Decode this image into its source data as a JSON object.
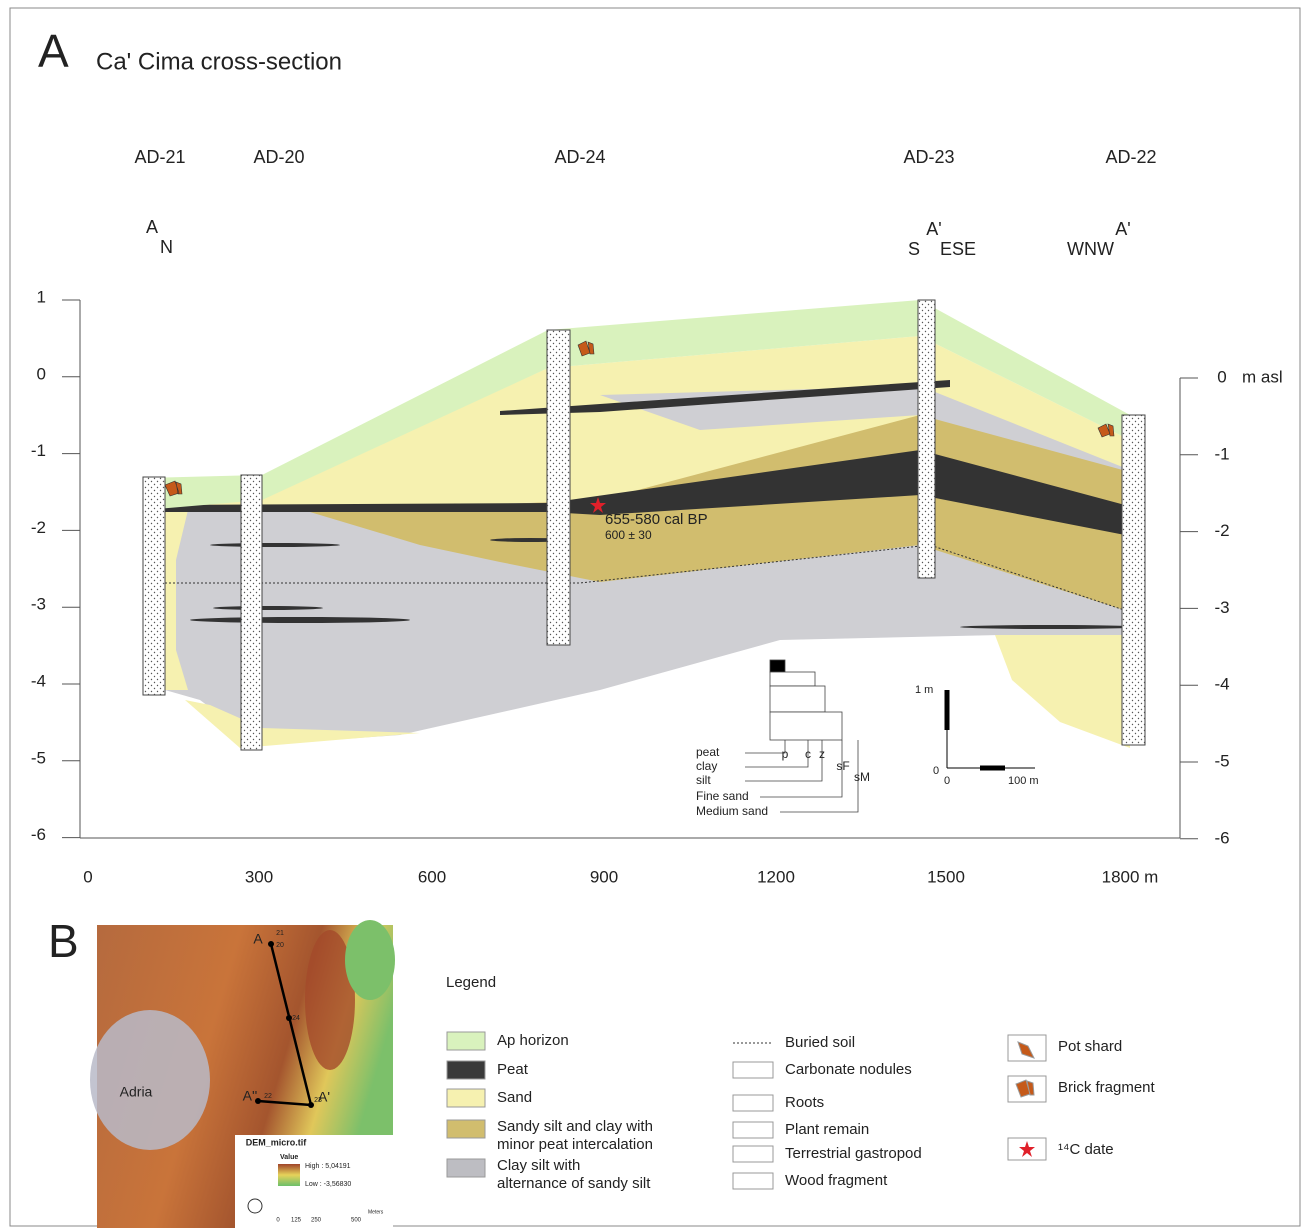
{
  "panel_a": {
    "label": "A",
    "title": "Ca' Cima cross-section",
    "boreholes": [
      "AD-21",
      "AD-20",
      "AD-24",
      "AD-23",
      "AD-22"
    ],
    "section_markers": [
      "A",
      "N",
      "A'",
      "S",
      "ESE",
      "WNW",
      "A'"
    ],
    "left_axis_ticks": [
      "1",
      "0",
      "-1",
      "-2",
      "-3",
      "-4",
      "-5",
      "-6"
    ],
    "right_axis_ticks": [
      "0",
      "-1",
      "-2",
      "-3",
      "-4",
      "-5",
      "-6"
    ],
    "right_axis_unit": "m asl",
    "x_axis_ticks": [
      "0",
      "300",
      "600",
      "900",
      "1200",
      "1500",
      "1800 m"
    ],
    "date_annotation": {
      "calibrated": "655-580 cal BP",
      "radiocarbon": "600 ± 30"
    },
    "grain_size_key": {
      "rows": [
        "peat",
        "clay",
        "silt",
        "Fine sand",
        "Medium sand"
      ],
      "columns": [
        "p",
        "c",
        "z",
        "sF",
        "sM"
      ]
    },
    "scale_bar": {
      "vertical": "1 m",
      "vertical_zero": "0",
      "horizontal_zero": "0",
      "horizontal": "100 m"
    }
  },
  "panel_b": {
    "label": "B",
    "map": {
      "section_ends": [
        "A",
        "A''",
        "A'"
      ],
      "site_labels": [
        "21",
        "20",
        "24",
        "22",
        "23"
      ],
      "town": "Adria",
      "legend_title": "DEM_micro.tif",
      "legend_subtitle": "Value",
      "high": "High : 5,04191",
      "low": "Low : -3,56830",
      "scale": [
        "0",
        "125",
        "250",
        "500"
      ],
      "scale_unit": "Meters"
    },
    "legend": {
      "title": "Legend",
      "units": [
        [
          "Ap horizon"
        ],
        [
          "Peat"
        ],
        [
          "Sand"
        ],
        [
          "Sandy silt and clay with",
          "minor peat intercalation"
        ],
        [
          "Clay silt with",
          "alternance of sandy silt"
        ]
      ],
      "symbols": [
        "Buried soil",
        "Carbonate nodules",
        "Roots",
        "Plant remain",
        "Terrestrial gastropod",
        "Wood fragment"
      ],
      "finds": [
        "Pot shard",
        "Brick fragment",
        "¹⁴C date"
      ]
    }
  }
}
